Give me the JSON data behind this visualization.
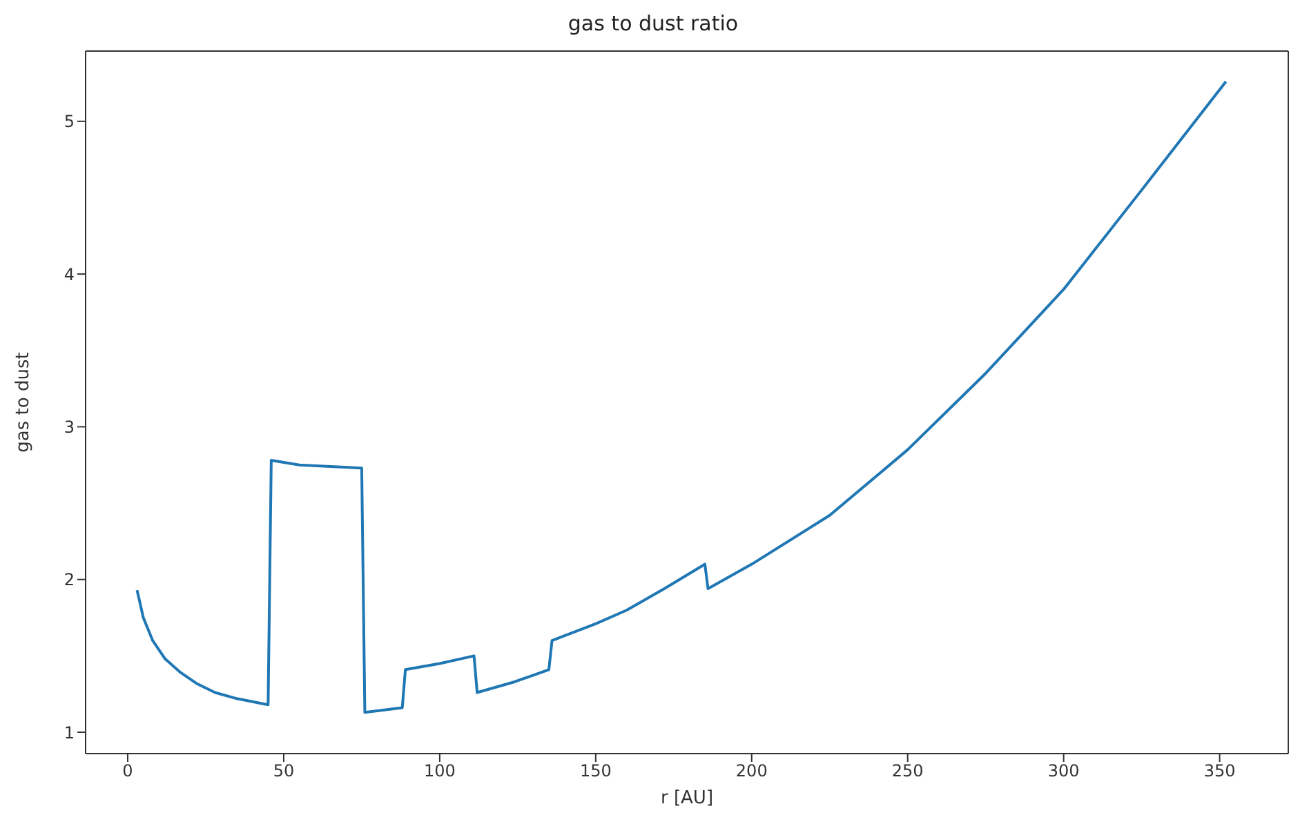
{
  "chart_data": {
    "type": "line",
    "title": "gas to dust ratio",
    "xlabel": "r [AU]",
    "ylabel": "gas to dust",
    "series": [
      {
        "color": "#1f77b4",
        "x": [
          3,
          5,
          8,
          12,
          17,
          22,
          28,
          35,
          45,
          46,
          55,
          65,
          75,
          76,
          88,
          89,
          100,
          111,
          112,
          124,
          135,
          136,
          150,
          160,
          172,
          185,
          186,
          200,
          225,
          250,
          275,
          300,
          325,
          352
        ],
        "values": [
          1.93,
          1.75,
          1.6,
          1.48,
          1.39,
          1.32,
          1.26,
          1.22,
          1.18,
          2.78,
          2.75,
          2.74,
          2.73,
          1.13,
          1.16,
          1.41,
          1.45,
          1.5,
          1.26,
          1.33,
          1.41,
          1.6,
          1.71,
          1.8,
          1.94,
          2.1,
          1.94,
          2.1,
          2.42,
          2.85,
          3.35,
          3.9,
          4.55,
          5.26
        ]
      }
    ],
    "xlim": [
      -13.5,
      372
    ],
    "xticks": [
      0,
      50,
      100,
      150,
      200,
      250,
      300,
      350
    ],
    "ylim": [
      0.86,
      5.46
    ],
    "yticks": [
      1,
      2,
      3,
      4,
      5
    ],
    "marker": "none",
    "line_style": "solid"
  }
}
